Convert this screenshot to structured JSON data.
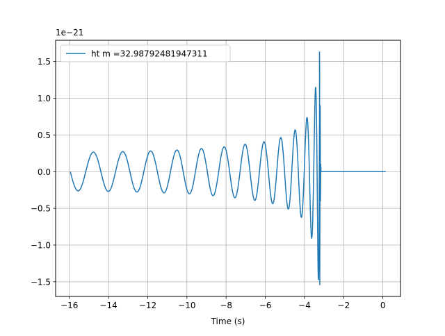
{
  "chart_data": {
    "type": "line",
    "title": "",
    "xlabel": "Time (s)",
    "ylabel": "",
    "y_scale_label": "1e−21",
    "y_multiplier": 1e-21,
    "xlim": [
      -16.7,
      0.9
    ],
    "ylim": [
      -1.7,
      1.79
    ],
    "grid": true,
    "legend_position": "top-left",
    "series": [
      {
        "name": "ht m =32.98792481947311",
        "color": "#1f77b4",
        "t_start": -15.95,
        "t_merger": -3.22,
        "t_end": 0.15,
        "envelope_points": [
          {
            "t": -15.9,
            "amplitude": 0.26
          },
          {
            "t": -14.0,
            "amplitude": 0.27
          },
          {
            "t": -12.0,
            "amplitude": 0.28
          },
          {
            "t": -10.0,
            "amplitude": 0.3
          },
          {
            "t": -8.0,
            "amplitude": 0.34
          },
          {
            "t": -6.0,
            "amplitude": 0.41
          },
          {
            "t": -5.0,
            "amplitude": 0.48
          },
          {
            "t": -4.0,
            "amplitude": 0.65
          },
          {
            "t": -3.5,
            "amplitude": 1.0
          },
          {
            "t": -3.3,
            "amplitude": 1.45
          },
          {
            "t": -3.22,
            "amplitude": 1.63
          }
        ],
        "peak_max": 1.63,
        "peak_min": -1.54,
        "post_merger_value": 0.0
      }
    ],
    "x_ticks": [
      {
        "value": -16,
        "label": "−16"
      },
      {
        "value": -14,
        "label": "−14"
      },
      {
        "value": -12,
        "label": "−12"
      },
      {
        "value": -10,
        "label": "−10"
      },
      {
        "value": -8,
        "label": "−8"
      },
      {
        "value": -6,
        "label": "−6"
      },
      {
        "value": -4,
        "label": "−4"
      },
      {
        "value": -2,
        "label": "−2"
      },
      {
        "value": 0,
        "label": "0"
      }
    ],
    "y_ticks": [
      {
        "value": -1.5,
        "label": "−1.5"
      },
      {
        "value": -1.0,
        "label": "−1.0"
      },
      {
        "value": -0.5,
        "label": "−0.5"
      },
      {
        "value": 0.0,
        "label": "0.0"
      },
      {
        "value": 0.5,
        "label": "0.5"
      },
      {
        "value": 1.0,
        "label": "1.0"
      },
      {
        "value": 1.5,
        "label": "1.5"
      }
    ]
  }
}
